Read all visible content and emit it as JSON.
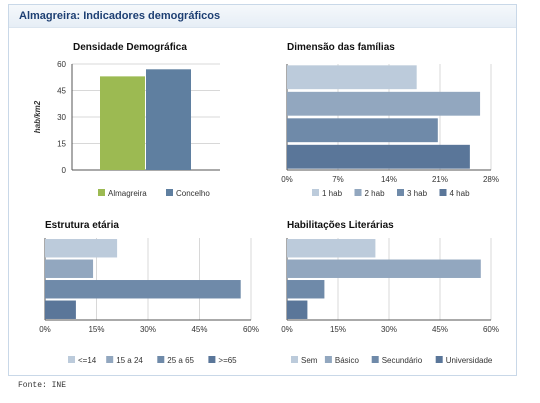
{
  "panel": {
    "title": "Almagreira: Indicadores demográficos"
  },
  "source": "Fonte: INE",
  "chart_data": [
    {
      "type": "bar",
      "title": "Densidade Demográfica",
      "ylabel": "hab/km2",
      "categories": [
        ""
      ],
      "series": [
        {
          "name": "Almagreira",
          "values": [
            53
          ],
          "color": "#9cba52"
        },
        {
          "name": "Concelho",
          "values": [
            57
          ],
          "color": "#5f7fa0"
        }
      ],
      "ylim": [
        0,
        60
      ],
      "yticks": [
        0,
        15,
        30,
        45,
        60
      ],
      "grid": true,
      "legend": "bottom"
    },
    {
      "type": "bar",
      "orientation": "horizontal",
      "title": "Dimensão das famílias",
      "categories": [
        "1 hab",
        "2 hab",
        "3 hab",
        "4 hab"
      ],
      "values": [
        17.8,
        26.5,
        20.7,
        25.1
      ],
      "colors": [
        "#bccbdb",
        "#92a7bf",
        "#6f8aa9",
        "#5a7699"
      ],
      "xlim": [
        0,
        28
      ],
      "xticks": [
        "0%",
        "7%",
        "14%",
        "21%",
        "28%"
      ],
      "grid": true,
      "legend": "bottom"
    },
    {
      "type": "bar",
      "orientation": "horizontal",
      "title": "Estrutura etária",
      "categories": [
        "<=14",
        "15 a 24",
        "25 a 65",
        ">=65"
      ],
      "values": [
        21,
        14,
        57,
        9
      ],
      "colors": [
        "#bccbdb",
        "#92a7bf",
        "#6f8aa9",
        "#5a7699"
      ],
      "xlim": [
        0,
        60
      ],
      "xticks": [
        "0%",
        "15%",
        "30%",
        "45%",
        "60%"
      ],
      "grid": true,
      "legend": "bottom"
    },
    {
      "type": "bar",
      "orientation": "horizontal",
      "title": "Habilitações Literárias",
      "categories": [
        "Sem",
        "Básico",
        "Secundário",
        "Universidade"
      ],
      "values": [
        26,
        57,
        11,
        6
      ],
      "colors": [
        "#bccbdb",
        "#92a7bf",
        "#6f8aa9",
        "#5a7699"
      ],
      "xlim": [
        0,
        60
      ],
      "xticks": [
        "0%",
        "15%",
        "30%",
        "45%",
        "60%"
      ],
      "grid": true,
      "legend": "bottom"
    }
  ]
}
